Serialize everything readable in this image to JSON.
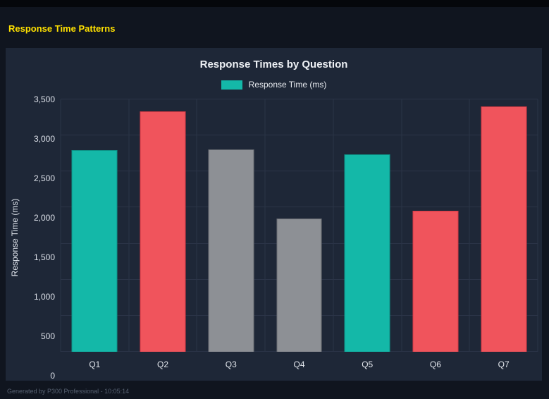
{
  "page": {
    "header_title": "Response Time Patterns",
    "footer_text": "Generated by P300 Professional - 10:05:14"
  },
  "colors": {
    "header_title": "#ffe100",
    "panel_background": "#1e2737",
    "page_background": "#10151f",
    "gridline": "#2b3447",
    "teal": "#14b8a8",
    "red": "#f0545c",
    "gray": "#8d9095"
  },
  "chart_data": {
    "type": "bar",
    "title": "Response Times by Question",
    "legend": [
      {
        "label": "Response Time (ms)",
        "color": "#14b8a8"
      }
    ],
    "legend_position": "top",
    "categories": [
      "Q1",
      "Q2",
      "Q3",
      "Q4",
      "Q5",
      "Q6",
      "Q7"
    ],
    "values": [
      2800,
      3330,
      2810,
      1850,
      2740,
      1960,
      3400
    ],
    "bar_colors": [
      "#14b8a8",
      "#f0545c",
      "#8d9095",
      "#8d9095",
      "#14b8a8",
      "#f0545c",
      "#f0545c"
    ],
    "bar_border_colors": [
      "#0e9488",
      "#d63a44",
      "#6b6e74",
      "#6b6e74",
      "#0e9488",
      "#d63a44",
      "#d63a44"
    ],
    "xlabel": "",
    "ylabel": "Response Time (ms)",
    "ylim": [
      0,
      3500
    ],
    "yticks": [
      0,
      500,
      1000,
      1500,
      2000,
      2500,
      3000,
      3500
    ],
    "ytick_labels": [
      "0",
      "500",
      "1,000",
      "1,500",
      "2,000",
      "2,500",
      "3,000",
      "3,500"
    ],
    "grid": true
  }
}
